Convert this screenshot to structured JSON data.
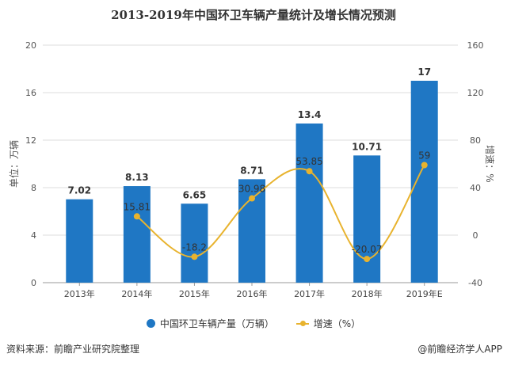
{
  "chart_data": {
    "type": "bar+line",
    "title": "2013-2019年中国环卫车辆产量统计及增长情况预测",
    "categories": [
      "2013年",
      "2014年",
      "2015年",
      "2016年",
      "2017年",
      "2018年",
      "2019年E"
    ],
    "series": [
      {
        "name": "中国环卫车辆产量（万辆）",
        "type": "bar",
        "axis": "left",
        "values": [
          7.02,
          8.13,
          6.65,
          8.71,
          13.4,
          10.71,
          17
        ],
        "labels": [
          "7.02",
          "8.13",
          "6.65",
          "8.71",
          "13.4",
          "10.71",
          "17"
        ]
      },
      {
        "name": "增速（%）",
        "type": "line",
        "axis": "right",
        "values": [
          null,
          15.81,
          -18.2,
          30.98,
          53.85,
          -20.07,
          59
        ],
        "labels": [
          "",
          "15.81",
          "-18.2",
          "30.98",
          "53.85",
          "-20.07",
          "59"
        ]
      }
    ],
    "ylabel": "单位：万辆",
    "y2label": "增速：%",
    "ylim": [
      0,
      20
    ],
    "yticks": [
      "0",
      "4",
      "8",
      "12",
      "16",
      "20"
    ],
    "y2lim": [
      -40,
      160
    ],
    "y2ticks": [
      "-40",
      "0",
      "40",
      "80",
      "120",
      "160"
    ],
    "grid": true,
    "legend": "bottom",
    "colors": {
      "bar": "#1f77c4",
      "line": "#e8b32e"
    }
  },
  "footer": {
    "source": "资料来源：前瞻产业研究院整理",
    "credit": "@前瞻经济学人APP"
  }
}
